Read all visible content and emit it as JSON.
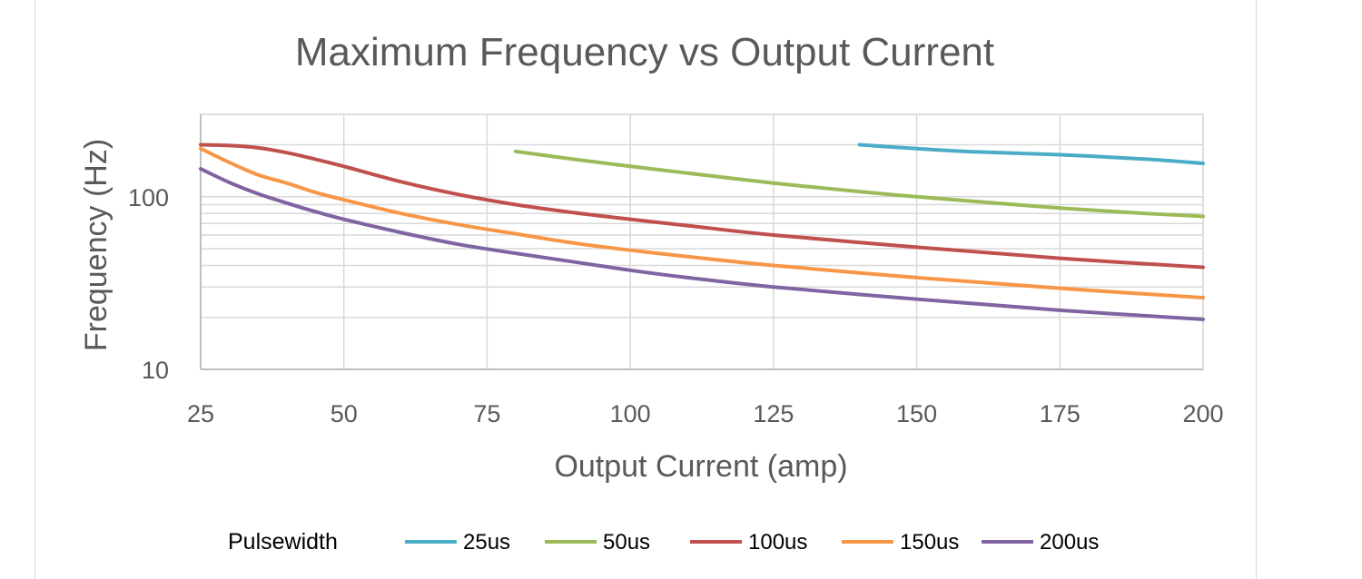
{
  "chart_data": {
    "type": "line",
    "title": "Maximum Frequency vs Output Current",
    "xlabel": "Output Current (amp)",
    "ylabel": "Frequency  (Hz)",
    "x_ticks": [
      25,
      50,
      75,
      100,
      125,
      150,
      175,
      200
    ],
    "y_tick_labels": [
      {
        "value": 10,
        "label": "10"
      },
      {
        "value": 100,
        "label": "100"
      }
    ],
    "xlim": [
      25,
      200
    ],
    "ylim": [
      10,
      300
    ],
    "y_scale": "log",
    "grid": true,
    "legend_title": "Pulsewidth",
    "legend_position": "bottom",
    "series": [
      {
        "name": "25us",
        "color": "#4bacc6",
        "points": [
          [
            140,
            200
          ],
          [
            150,
            190
          ],
          [
            160,
            182
          ],
          [
            175,
            175
          ],
          [
            190,
            165
          ],
          [
            200,
            156
          ]
        ]
      },
      {
        "name": "50us",
        "color": "#9bbb59",
        "points": [
          [
            80,
            183
          ],
          [
            90,
            165
          ],
          [
            100,
            150
          ],
          [
            110,
            137
          ],
          [
            125,
            120
          ],
          [
            140,
            107
          ],
          [
            150,
            100
          ],
          [
            160,
            94
          ],
          [
            175,
            86
          ],
          [
            190,
            80
          ],
          [
            200,
            77
          ]
        ]
      },
      {
        "name": "100us",
        "color": "#c0504d",
        "points": [
          [
            25,
            200
          ],
          [
            30,
            198
          ],
          [
            35,
            192
          ],
          [
            40,
            180
          ],
          [
            45,
            165
          ],
          [
            50,
            150
          ],
          [
            60,
            122
          ],
          [
            70,
            103
          ],
          [
            80,
            90
          ],
          [
            90,
            81
          ],
          [
            100,
            74
          ],
          [
            110,
            68
          ],
          [
            125,
            60
          ],
          [
            150,
            51
          ],
          [
            175,
            44
          ],
          [
            200,
            39
          ]
        ]
      },
      {
        "name": "150us",
        "color": "#f79646",
        "points": [
          [
            25,
            190
          ],
          [
            30,
            158
          ],
          [
            35,
            134
          ],
          [
            40,
            120
          ],
          [
            45,
            106
          ],
          [
            50,
            96
          ],
          [
            60,
            80
          ],
          [
            70,
            69
          ],
          [
            80,
            61
          ],
          [
            90,
            54
          ],
          [
            100,
            49
          ],
          [
            110,
            45
          ],
          [
            125,
            40
          ],
          [
            150,
            34
          ],
          [
            175,
            29.5
          ],
          [
            200,
            26
          ]
        ]
      },
      {
        "name": "200us",
        "color": "#8064a2",
        "points": [
          [
            25,
            145
          ],
          [
            30,
            121
          ],
          [
            35,
            104
          ],
          [
            40,
            92
          ],
          [
            45,
            82
          ],
          [
            50,
            74
          ],
          [
            60,
            62
          ],
          [
            70,
            53
          ],
          [
            80,
            47
          ],
          [
            90,
            42
          ],
          [
            100,
            37.5
          ],
          [
            110,
            34
          ],
          [
            125,
            30
          ],
          [
            150,
            25.5
          ],
          [
            175,
            22
          ],
          [
            200,
            19.5
          ]
        ]
      }
    ]
  }
}
